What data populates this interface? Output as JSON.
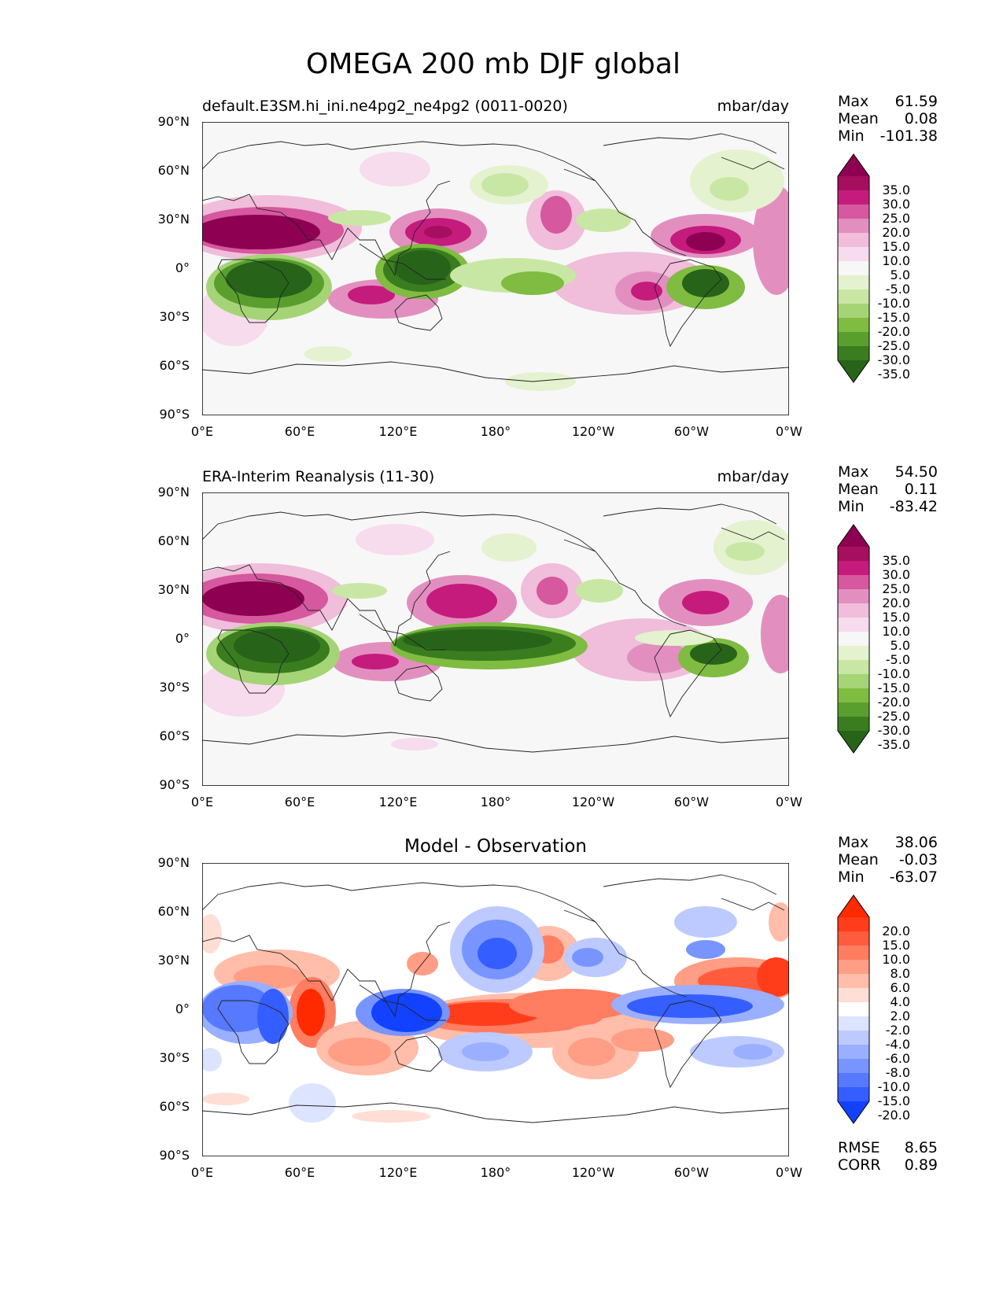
{
  "figure": {
    "title": "OMEGA 200 mb DJF global"
  },
  "axes": {
    "lat_ticks": [
      "90°N",
      "60°N",
      "30°N",
      "0°",
      "30°S",
      "60°S",
      "90°S"
    ],
    "lon_ticks": [
      "0°E",
      "60°E",
      "120°E",
      "180°",
      "120°W",
      "60°W",
      "0°W"
    ]
  },
  "panels": [
    {
      "id": "model",
      "left_title": "default.E3SM.hi_ini.ne4pg2_ne4pg2 (0011-0020)",
      "center_title": "",
      "units": "mbar/day",
      "stats": [
        {
          "label": "Max",
          "value": "61.59"
        },
        {
          "label": "Mean",
          "value": "0.08"
        },
        {
          "label": "Min",
          "value": "-101.38"
        }
      ],
      "colorbar": {
        "labels": [
          "35.0",
          "30.0",
          "25.0",
          "20.0",
          "15.0",
          "10.0",
          "5.0",
          "-5.0",
          "-10.0",
          "-15.0",
          "-20.0",
          "-25.0",
          "-30.0",
          "-35.0"
        ],
        "colors": [
          "#8e0152",
          "#a60f5e",
          "#c51b7d",
          "#d6589e",
          "#e28fc0",
          "#f0bdda",
          "#f7dced",
          "#f7f7f7",
          "#e4f2cf",
          "#c9e7a4",
          "#a5d476",
          "#7fbc41",
          "#5a9f2e",
          "#3a7d1f",
          "#276419"
        ]
      },
      "footer": []
    },
    {
      "id": "obs",
      "left_title": "ERA-Interim Reanalysis (11-30)",
      "center_title": "",
      "units": "mbar/day",
      "stats": [
        {
          "label": "Max",
          "value": "54.50"
        },
        {
          "label": "Mean",
          "value": "0.11"
        },
        {
          "label": "Min",
          "value": "-83.42"
        }
      ],
      "colorbar": {
        "labels": [
          "35.0",
          "30.0",
          "25.0",
          "20.0",
          "15.0",
          "10.0",
          "5.0",
          "-5.0",
          "-10.0",
          "-15.0",
          "-20.0",
          "-25.0",
          "-30.0",
          "-35.0"
        ],
        "colors": [
          "#8e0152",
          "#a60f5e",
          "#c51b7d",
          "#d6589e",
          "#e28fc0",
          "#f0bdda",
          "#f7dced",
          "#f7f7f7",
          "#e4f2cf",
          "#c9e7a4",
          "#a5d476",
          "#7fbc41",
          "#5a9f2e",
          "#3a7d1f",
          "#276419"
        ]
      },
      "footer": []
    },
    {
      "id": "diff",
      "left_title": "",
      "center_title": "Model - Observation",
      "units": "",
      "stats": [
        {
          "label": "Max",
          "value": "38.06"
        },
        {
          "label": "Mean",
          "value": "-0.03"
        },
        {
          "label": "Min",
          "value": "-63.07"
        }
      ],
      "colorbar": {
        "labels": [
          "20.0",
          "15.0",
          "10.0",
          "8.0",
          "6.0",
          "4.0",
          "2.0",
          "-2.0",
          "-4.0",
          "-6.0",
          "-8.0",
          "-10.0",
          "-15.0",
          "-20.0"
        ],
        "colors": [
          "#ff2a00",
          "#ff3d1a",
          "#ff5c3d",
          "#ff7d61",
          "#ff9d85",
          "#ffbdaa",
          "#ffded5",
          "#ffffff",
          "#dde4ff",
          "#bccaff",
          "#9aafff",
          "#7894ff",
          "#5679ff",
          "#345eff",
          "#1242ff"
        ]
      },
      "footer": [
        {
          "label": "RMSE",
          "value": "8.65"
        },
        {
          "label": "CORR",
          "value": "0.89"
        }
      ]
    }
  ]
}
